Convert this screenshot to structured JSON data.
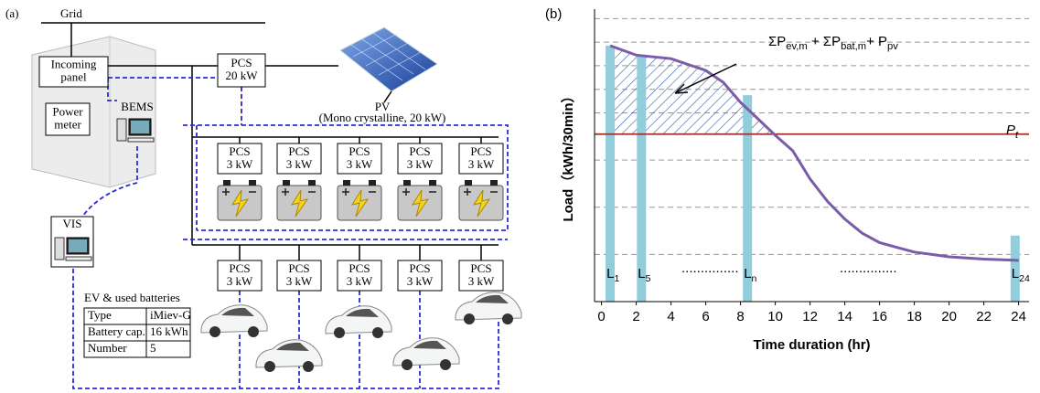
{
  "panel_a": {
    "label": "(a)",
    "grid": "Grid",
    "incoming_panel": [
      "Incoming",
      "panel"
    ],
    "power_meter": [
      "Power",
      "meter"
    ],
    "bems": "BEMS",
    "pcs_main": [
      "PCS",
      "20 kW"
    ],
    "pv": "PV",
    "pv_note": "(Mono crystalline, 20 kW)",
    "battery_pcs": [
      [
        "PCS",
        "3 kW"
      ],
      [
        "PCS",
        "3 kW"
      ],
      [
        "PCS",
        "3 kW"
      ],
      [
        "PCS",
        "3 kW"
      ],
      [
        "PCS",
        "3 kW"
      ]
    ],
    "ev_pcs": [
      [
        "PCS",
        "3 kW"
      ],
      [
        "PCS",
        "3 kW"
      ],
      [
        "PCS",
        "3 kW"
      ],
      [
        "PCS",
        "3 kW"
      ],
      [
        "PCS",
        "3 kW"
      ]
    ],
    "vis": "VIS",
    "ev_title": "EV & used batteries",
    "table": {
      "rows": [
        [
          "Type",
          "iMiev-G"
        ],
        [
          "Battery cap.",
          "16 kWh"
        ],
        [
          "Number",
          "5"
        ]
      ]
    }
  },
  "chart_data": {
    "type": "line",
    "panel_label": "(b)",
    "x_label": "Time duration (hr)",
    "y_label": "Load（kWh/30min）",
    "xlim": [
      -0.4,
      24.6
    ],
    "xticks": [
      0,
      2,
      4,
      6,
      8,
      10,
      12,
      14,
      16,
      18,
      20,
      22,
      24
    ],
    "ylim": [
      0,
      12.4
    ],
    "ygrid": [
      2,
      4,
      6,
      8,
      9,
      10,
      11,
      12
    ],
    "line": {
      "color": "#7b5ca8",
      "x": [
        0.5,
        2,
        4,
        6,
        7,
        8,
        9,
        10,
        11,
        12,
        13,
        14,
        15,
        16,
        17,
        18,
        20,
        22,
        24
      ],
      "values": [
        10.85,
        10.45,
        10.3,
        9.8,
        9.3,
        8.45,
        7.75,
        7.05,
        6.4,
        5.2,
        4.25,
        3.5,
        2.9,
        2.5,
        2.3,
        2.1,
        1.9,
        1.8,
        1.75
      ]
    },
    "bars": {
      "color": "#92cddc",
      "x": [
        0.5,
        2.3,
        8.4,
        23.8
      ],
      "values": [
        10.85,
        10.4,
        8.75,
        2.8
      ],
      "labels": [
        [
          "L",
          "1"
        ],
        [
          "L",
          "5"
        ],
        [
          "L",
          "n"
        ],
        [
          "L",
          "24"
        ]
      ]
    },
    "threshold": {
      "value": 7.1,
      "color": "#a0302a",
      "label": [
        "P",
        "t"
      ]
    },
    "annotation": [
      "ΣP",
      "ev,m",
      " + ΣP",
      "bat,m",
      "+ P",
      "pv"
    ],
    "dots": [
      "...............",
      "..............."
    ]
  }
}
